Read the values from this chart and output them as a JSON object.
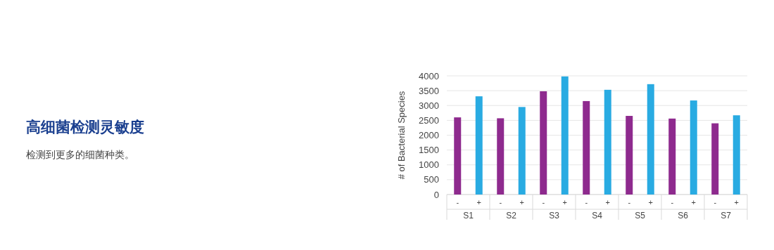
{
  "chart_data": {
    "type": "bar",
    "title": "高细菌检测灵敏度",
    "subtitle": "检测到更多的细菌种类。",
    "ylabel": "# of Bacterial Species",
    "categories": [
      "S1",
      "S2",
      "S3",
      "S4",
      "S5",
      "S6",
      "S7"
    ],
    "series": [
      {
        "name": "-",
        "color": "#8e2a8e",
        "values": [
          2600,
          2570,
          3480,
          3150,
          2650,
          2560,
          2400
        ]
      },
      {
        "name": "+",
        "color": "#29abe2",
        "values": [
          3310,
          2950,
          3980,
          3530,
          3720,
          3170,
          2670
        ]
      }
    ],
    "ylim": [
      0,
      4000
    ],
    "yticks": [
      0,
      500,
      1000,
      1500,
      2000,
      2500,
      3000,
      3500,
      4000
    ],
    "grid": "y"
  }
}
